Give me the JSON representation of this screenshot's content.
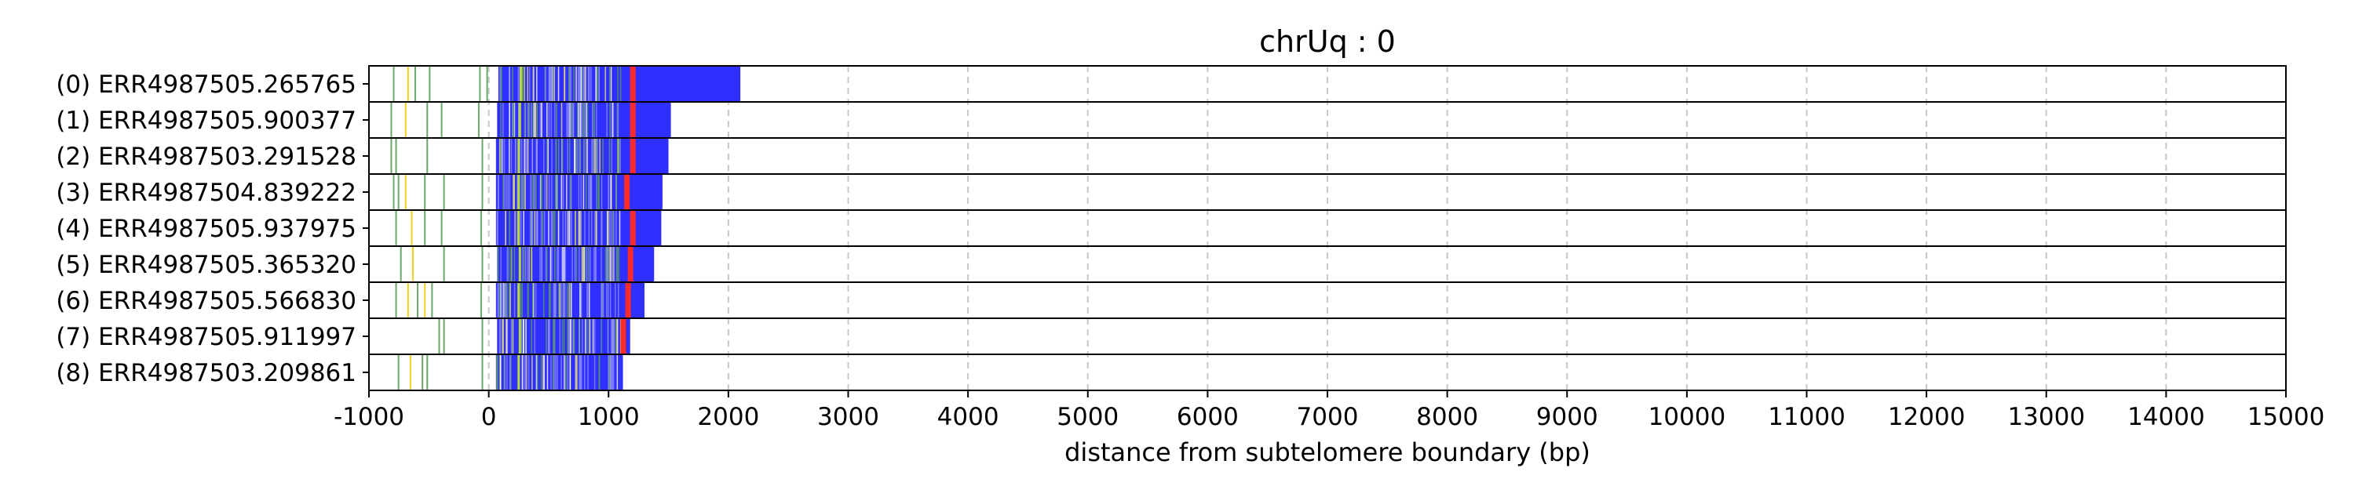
{
  "chart_data": {
    "type": "read-track",
    "title": "chrUq : 0",
    "xlabel": "distance from subtelomere boundary (bp)",
    "xlim": [
      -1000,
      15000
    ],
    "xticks": [
      -1000,
      0,
      1000,
      2000,
      3000,
      4000,
      5000,
      6000,
      7000,
      8000,
      9000,
      10000,
      11000,
      12000,
      13000,
      14000,
      15000
    ],
    "grid": "vertical-dashed",
    "colors": {
      "telomere_repeat": "#2f2fff",
      "variant_repeat": "#ff2a2a",
      "green_mark": "#3a8a3a",
      "yellow_mark": "#f0d020",
      "grid": "#c8c8c8"
    },
    "reads": [
      {
        "label": "(0) ERR4987505.265765",
        "start": 80,
        "red_at": 1180,
        "end": 2100,
        "yellow": [
          -680,
          390
        ],
        "green": [
          -800,
          -620,
          -500,
          -80,
          -20,
          150,
          260,
          980
        ]
      },
      {
        "label": "(1) ERR4987505.900377",
        "start": 70,
        "red_at": 1180,
        "end": 1520,
        "yellow": [
          -700,
          380
        ],
        "green": [
          -820,
          -520,
          -400,
          -90,
          160,
          250,
          990
        ]
      },
      {
        "label": "(2) ERR4987503.291528",
        "start": 60,
        "red_at": 1180,
        "end": 1500,
        "yellow": [
          380
        ],
        "green": [
          -820,
          -780,
          -520,
          -60,
          150,
          260,
          1000
        ]
      },
      {
        "label": "(3) ERR4987504.839222",
        "start": 60,
        "red_at": 1130,
        "end": 1450,
        "yellow": [
          -700,
          380
        ],
        "green": [
          -800,
          -760,
          -540,
          -380,
          -60,
          160,
          990
        ]
      },
      {
        "label": "(4) ERR4987505.937975",
        "start": 60,
        "red_at": 1180,
        "end": 1440,
        "yellow": [
          -650,
          370
        ],
        "green": [
          -780,
          -540,
          -400,
          -70,
          150,
          980
        ]
      },
      {
        "label": "(5) ERR4987505.365320",
        "start": 70,
        "red_at": 1160,
        "end": 1380,
        "yellow": [
          -640,
          380
        ],
        "green": [
          -740,
          -380,
          -60,
          160,
          990
        ]
      },
      {
        "label": "(6) ERR4987505.566830",
        "start": 60,
        "red_at": 1140,
        "end": 1300,
        "yellow": [
          -680,
          -540,
          370
        ],
        "green": [
          -780,
          -600,
          -480,
          -70,
          150,
          980
        ]
      },
      {
        "label": "(7) ERR4987505.911997",
        "start": 70,
        "red_at": 1100,
        "end": 1180,
        "yellow": [
          380
        ],
        "green": [
          -420,
          -380,
          -60,
          160,
          990
        ]
      },
      {
        "label": "(8) ERR4987503.209861",
        "start": 60,
        "red_at": null,
        "end": 1120,
        "yellow": [
          -660,
          380
        ],
        "green": [
          -760,
          -560,
          -520,
          -60,
          150,
          980
        ]
      }
    ]
  }
}
